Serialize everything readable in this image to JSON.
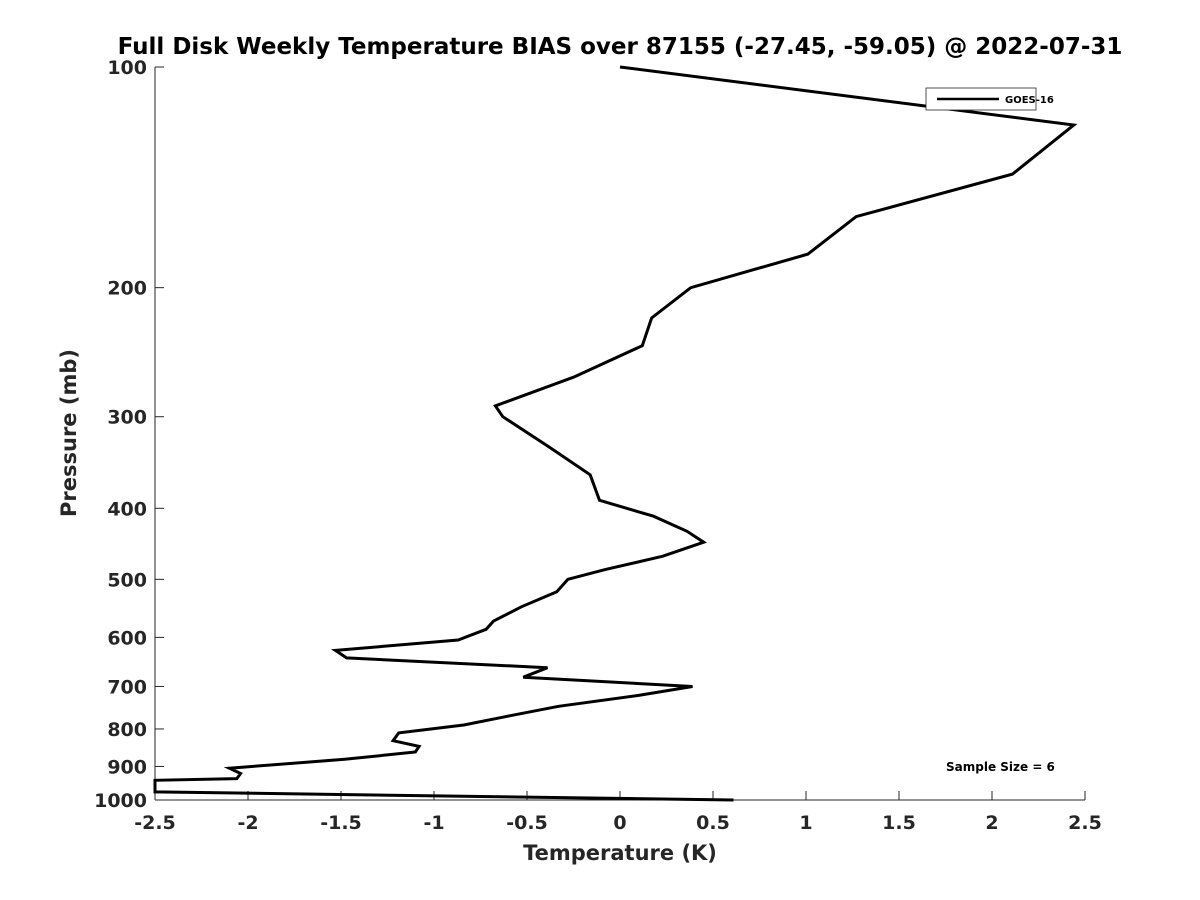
{
  "chart_data": {
    "type": "line",
    "title": "Full Disk Weekly Temperature BIAS over 87155 (-27.45, -59.05) @ 2022-07-31",
    "xlabel": "Temperature (K)",
    "ylabel": "Pressure (mb)",
    "xlim": [
      -2.5,
      2.5
    ],
    "ylim": [
      100,
      1000
    ],
    "yscale": "log",
    "y_reversed": true,
    "grid": false,
    "legend_position": "top-right",
    "x_ticks": [
      -2.5,
      -2,
      -1.5,
      -1,
      -0.5,
      0,
      0.5,
      1,
      1.5,
      2,
      2.5
    ],
    "x_tick_labels": [
      "-2.5",
      "-2",
      "-1.5",
      "-1",
      "-0.5",
      "0",
      "0.5",
      "1",
      "1.5",
      "2",
      "2.5"
    ],
    "y_ticks": [
      100,
      200,
      300,
      400,
      500,
      600,
      700,
      800,
      900,
      1000
    ],
    "y_tick_labels": [
      "100",
      "200",
      "300",
      "400",
      "500",
      "600",
      "700",
      "800",
      "900",
      "1000"
    ],
    "annotation": "Sample Size = 6",
    "series": [
      {
        "name": "GOES-16",
        "color": "#000000",
        "points": [
          {
            "x": 0.0,
            "y": 100
          },
          {
            "x": 2.44,
            "y": 120
          },
          {
            "x": 2.11,
            "y": 140
          },
          {
            "x": 1.27,
            "y": 160
          },
          {
            "x": 1.01,
            "y": 180
          },
          {
            "x": 0.38,
            "y": 200
          },
          {
            "x": 0.17,
            "y": 220
          },
          {
            "x": 0.12,
            "y": 240
          },
          {
            "x": -0.25,
            "y": 265
          },
          {
            "x": -0.67,
            "y": 290
          },
          {
            "x": -0.63,
            "y": 300
          },
          {
            "x": -0.38,
            "y": 330
          },
          {
            "x": -0.16,
            "y": 360
          },
          {
            "x": -0.11,
            "y": 390
          },
          {
            "x": 0.18,
            "y": 410
          },
          {
            "x": 0.36,
            "y": 430
          },
          {
            "x": 0.45,
            "y": 445
          },
          {
            "x": 0.23,
            "y": 465
          },
          {
            "x": -0.08,
            "y": 485
          },
          {
            "x": -0.28,
            "y": 500
          },
          {
            "x": -0.34,
            "y": 520
          },
          {
            "x": -0.53,
            "y": 545
          },
          {
            "x": -0.68,
            "y": 570
          },
          {
            "x": -0.72,
            "y": 585
          },
          {
            "x": -0.87,
            "y": 605
          },
          {
            "x": -1.53,
            "y": 625
          },
          {
            "x": -1.47,
            "y": 640
          },
          {
            "x": -0.39,
            "y": 660
          },
          {
            "x": -0.52,
            "y": 680
          },
          {
            "x": 0.39,
            "y": 700
          },
          {
            "x": 0.1,
            "y": 720
          },
          {
            "x": -0.33,
            "y": 745
          },
          {
            "x": -0.62,
            "y": 770
          },
          {
            "x": -0.84,
            "y": 790
          },
          {
            "x": -1.19,
            "y": 810
          },
          {
            "x": -1.22,
            "y": 830
          },
          {
            "x": -1.08,
            "y": 845
          },
          {
            "x": -1.1,
            "y": 860
          },
          {
            "x": -1.48,
            "y": 880
          },
          {
            "x": -2.1,
            "y": 905
          },
          {
            "x": -2.04,
            "y": 920
          },
          {
            "x": -2.06,
            "y": 935
          },
          {
            "x": -2.5,
            "y": 940
          },
          {
            "x": -2.5,
            "y": 975
          },
          {
            "x": 0.61,
            "y": 1000
          }
        ]
      }
    ]
  }
}
